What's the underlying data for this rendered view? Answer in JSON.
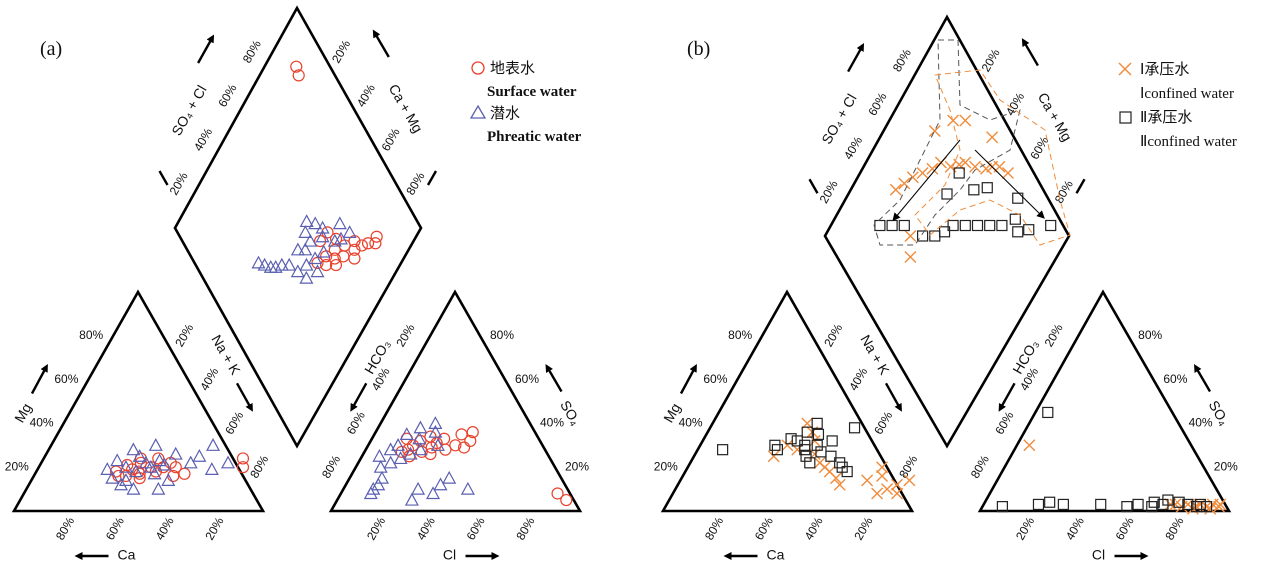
{
  "colors": {
    "surface": "#e8412c",
    "phreatic": "#5a5fb0",
    "confined1": "#f08c3c",
    "confined2": "#222222",
    "frame": "#000000"
  },
  "panels": [
    {
      "label": "(a)",
      "legend": [
        {
          "symbol": "circle",
          "color": "surface",
          "zh": "地表水",
          "en": "Surface water"
        },
        {
          "symbol": "triangle",
          "color": "phreatic",
          "zh": "潜水",
          "en": "Phreatic water"
        }
      ]
    },
    {
      "label": "(b)",
      "legend": [
        {
          "symbol": "cross",
          "color": "confined1",
          "zh": "Ⅰ承压水",
          "en": "Ⅰconfined water"
        },
        {
          "symbol": "square",
          "color": "confined2",
          "zh": "Ⅱ承压水",
          "en": "Ⅱconfined water"
        }
      ]
    }
  ],
  "axis_titles": {
    "so4_cl": "SO₄ + Cl",
    "ca_mg": "Ca + Mg",
    "mg": "Mg",
    "na_k": "Na + K",
    "ca": "Ca",
    "hco3": "HCO₃",
    "so4": "SO₄",
    "cl": "Cl"
  },
  "ticks": [
    "20%",
    "40%",
    "60%",
    "80%"
  ],
  "chart_data": [
    {
      "type": "scatter",
      "diagram": "Piper trilinear",
      "panel": "(a)",
      "axes": [
        "Ca (%)",
        "Mg (%)",
        "Na + K (%)",
        "HCO3 (%)",
        "SO4 (%)",
        "Cl (%)",
        "SO4 + Cl (%)",
        "Ca + Mg (%)"
      ],
      "series": [
        {
          "name": "地表水 Surface water",
          "cation_triangle_Ca_Mg": [
            [
              52,
              18
            ],
            [
              55,
              20
            ],
            [
              58,
              17
            ],
            [
              60,
              22
            ],
            [
              62,
              19
            ],
            [
              65,
              21
            ],
            [
              50,
              20
            ],
            [
              57,
              15
            ],
            [
              63,
              16
            ],
            [
              48,
              22
            ],
            [
              44,
              16
            ],
            [
              68,
              18
            ],
            [
              54,
              24
            ],
            [
              59,
              18
            ],
            [
              20,
              24
            ],
            [
              18,
              20
            ],
            [
              40,
              17
            ],
            [
              45,
              20
            ],
            [
              61,
              24
            ],
            [
              66,
              16
            ]
          ],
          "anion_triangle_Cl_SO4": [
            [
              45,
              28
            ],
            [
              48,
              30
            ],
            [
              50,
              27
            ],
            [
              52,
              32
            ],
            [
              55,
              29
            ],
            [
              58,
              31
            ],
            [
              60,
              28
            ],
            [
              62,
              33
            ],
            [
              65,
              30
            ],
            [
              70,
              35
            ],
            [
              72,
              32
            ],
            [
              75,
              36
            ],
            [
              44,
              25
            ],
            [
              47,
              33
            ],
            [
              53,
              26
            ],
            [
              57,
              34
            ],
            [
              95,
              8
            ],
            [
              97,
              5
            ],
            [
              68,
              29
            ],
            [
              42,
              27
            ]
          ],
          "diamond_SO4Cl_CaMg": [
            [
              55,
              68
            ],
            [
              58,
              72
            ],
            [
              60,
              70
            ],
            [
              62,
              75
            ],
            [
              65,
              73
            ],
            [
              68,
              78
            ],
            [
              70,
              76
            ],
            [
              72,
              80
            ],
            [
              75,
              82
            ],
            [
              78,
              85
            ],
            [
              80,
              84
            ],
            [
              50,
              66
            ],
            [
              53,
              70
            ],
            [
              57,
              74
            ],
            [
              63,
              68
            ],
            [
              66,
              80
            ],
            [
              61,
              63
            ],
            [
              56,
              62
            ],
            [
              85,
              15
            ],
            [
              86,
              12
            ]
          ]
        },
        {
          "name": "潜水 Phreatic water",
          "cation_triangle_Ca_Mg": [
            [
              55,
              20
            ],
            [
              58,
              22
            ],
            [
              60,
              18
            ],
            [
              62,
              25
            ],
            [
              65,
              20
            ],
            [
              68,
              15
            ],
            [
              70,
              23
            ],
            [
              72,
              19
            ],
            [
              50,
              21
            ],
            [
              52,
              17
            ],
            [
              48,
              26
            ],
            [
              45,
              14
            ],
            [
              40,
              22
            ],
            [
              38,
              25
            ],
            [
              35,
              30
            ],
            [
              30,
              19
            ],
            [
              25,
              22
            ],
            [
              63,
              12
            ],
            [
              57,
              10
            ],
            [
              47,
              10
            ],
            [
              66,
              28
            ],
            [
              58,
              30
            ],
            [
              62,
              14
            ],
            [
              53,
              23
            ]
          ],
          "anion_triangle_Cl_SO4": [
            [
              30,
              20
            ],
            [
              32,
              25
            ],
            [
              35,
              22
            ],
            [
              38,
              28
            ],
            [
              40,
              24
            ],
            [
              42,
              30
            ],
            [
              45,
              26
            ],
            [
              48,
              35
            ],
            [
              50,
              28
            ],
            [
              52,
              33
            ],
            [
              55,
              38
            ],
            [
              58,
              30
            ],
            [
              60,
              36
            ],
            [
              62,
              40
            ],
            [
              28,
              15
            ],
            [
              25,
              12
            ],
            [
              22,
              10
            ],
            [
              20,
              8
            ],
            [
              35,
              5
            ],
            [
              40,
              10
            ],
            [
              45,
              8
            ],
            [
              50,
              12
            ],
            [
              55,
              15
            ],
            [
              60,
              10
            ]
          ],
          "diamond_SO4Cl_CaMg": [
            [
              40,
              60
            ],
            [
              42,
              65
            ],
            [
              45,
              62
            ],
            [
              48,
              68
            ],
            [
              50,
              64
            ],
            [
              52,
              58
            ],
            [
              55,
              66
            ],
            [
              58,
              62
            ],
            [
              60,
              60
            ],
            [
              62,
              68
            ],
            [
              65,
              70
            ],
            [
              68,
              66
            ],
            [
              70,
              72
            ],
            [
              38,
              55
            ],
            [
              35,
              52
            ],
            [
              32,
              50
            ],
            [
              30,
              48
            ],
            [
              28,
              45
            ],
            [
              26,
              42
            ],
            [
              45,
              55
            ],
            [
              48,
              58
            ],
            [
              52,
              54
            ],
            [
              55,
              52
            ],
            [
              58,
              56
            ]
          ]
        }
      ]
    },
    {
      "type": "scatter",
      "diagram": "Piper trilinear",
      "panel": "(b)",
      "axes": [
        "Ca (%)",
        "Mg (%)",
        "Na + K (%)",
        "HCO3 (%)",
        "SO4 (%)",
        "Cl (%)",
        "SO4 + Cl (%)",
        "Ca + Mg (%)"
      ],
      "series": [
        {
          "name": "Ⅰ承压水 Ⅰconfined water",
          "cation_triangle_Ca_Mg": [
            [
              62,
              40
            ],
            [
              58,
              36
            ],
            [
              55,
              32
            ],
            [
              60,
              28
            ],
            [
              65,
              30
            ],
            [
              52,
              26
            ],
            [
              48,
              22
            ],
            [
              45,
              20
            ],
            [
              42,
              18
            ],
            [
              38,
              15
            ],
            [
              35,
              12
            ],
            [
              25,
              14
            ],
            [
              20,
              16
            ],
            [
              15,
              10
            ],
            [
              12,
              12
            ],
            [
              10,
              8
            ],
            [
              8,
              14
            ],
            [
              18,
              8
            ],
            [
              22,
              20
            ],
            [
              68,
              25
            ]
          ],
          "anion_triangle_Cl_SO4": [
            [
              35,
              30
            ],
            [
              80,
              3
            ],
            [
              82,
              2
            ],
            [
              85,
              3
            ],
            [
              88,
              2
            ],
            [
              90,
              3
            ],
            [
              92,
              2
            ],
            [
              95,
              3
            ],
            [
              97,
              2
            ],
            [
              98,
              3
            ],
            [
              78,
              3
            ],
            [
              86,
              1
            ],
            [
              93,
              1
            ]
          ],
          "diamond_SO4Cl_CaMg": [
            [
              90,
              60
            ],
            [
              88,
              55
            ],
            [
              85,
              52
            ],
            [
              82,
              50
            ],
            [
              78,
              45
            ],
            [
              75,
              40
            ],
            [
              72,
              38
            ],
            [
              68,
              35
            ],
            [
              65,
              30
            ],
            [
              60,
              28
            ],
            [
              55,
              25
            ],
            [
              50,
              22
            ],
            [
              45,
              20
            ],
            [
              40,
              18
            ],
            [
              35,
              35
            ],
            [
              30,
              40
            ],
            [
              85,
              30
            ],
            [
              80,
              25
            ],
            [
              92,
              45
            ],
            [
              70,
              20
            ]
          ]
        },
        {
          "name": "Ⅱ承压水 Ⅱconfined water",
          "cation_triangle_Ca_Mg": [
            [
              62,
              32
            ],
            [
              58,
              30
            ],
            [
              55,
              35
            ],
            [
              60,
              36
            ],
            [
              65,
              33
            ],
            [
              57,
              28
            ],
            [
              53,
              30
            ],
            [
              50,
              27
            ],
            [
              48,
              32
            ],
            [
              45,
              25
            ],
            [
              40,
              22
            ],
            [
              38,
              20
            ],
            [
              35,
              18
            ],
            [
              68,
              28
            ],
            [
              70,
              30
            ],
            [
              58,
              40
            ],
            [
              42,
              38
            ],
            [
              52,
              22
            ],
            [
              90,
              28
            ],
            [
              55,
              25
            ]
          ],
          "anion_triangle_Cl_SO4": [
            [
              10,
              2
            ],
            [
              25,
              3
            ],
            [
              30,
              4
            ],
            [
              35,
              3
            ],
            [
              50,
              3
            ],
            [
              60,
              2
            ],
            [
              65,
              3
            ],
            [
              70,
              2
            ],
            [
              72,
              4
            ],
            [
              75,
              3
            ],
            [
              78,
              5
            ],
            [
              82,
              4
            ],
            [
              85,
              3
            ],
            [
              88,
              2
            ],
            [
              90,
              3
            ],
            [
              92,
              2
            ],
            [
              50,
              45
            ]
          ],
          "diamond_SO4Cl_CaMg": [
            [
              95,
              90
            ],
            [
              85,
              82
            ],
            [
              80,
              78
            ],
            [
              75,
              70
            ],
            [
              70,
              65
            ],
            [
              65,
              60
            ],
            [
              60,
              55
            ],
            [
              55,
              50
            ],
            [
              50,
              48
            ],
            [
              45,
              45
            ],
            [
              40,
              40
            ],
            [
              35,
              30
            ],
            [
              30,
              25
            ],
            [
              25,
              20
            ],
            [
              72,
              50
            ],
            [
              78,
              55
            ],
            [
              60,
              40
            ],
            [
              70,
              40
            ],
            [
              88,
              70
            ],
            [
              82,
              74
            ]
          ]
        }
      ]
    }
  ]
}
